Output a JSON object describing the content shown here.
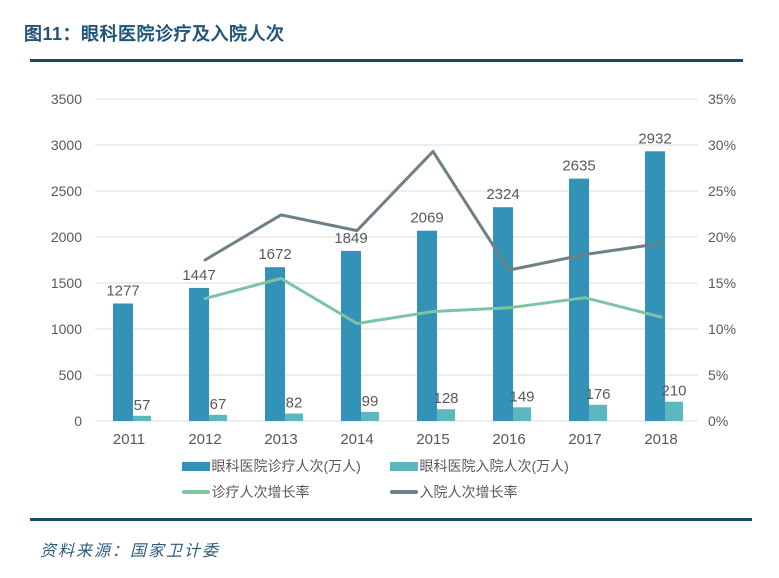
{
  "header": {
    "title": "图11：眼科医院诊疗及入院人次"
  },
  "footer": {
    "source": "资料来源：国家卫计委"
  },
  "theme": {
    "title_color": "#1f5578",
    "rule_color": "#1c4a63",
    "axis_text_color": "#595959",
    "grid_color": "#dcdcdc",
    "source_text_color": "#2e5c7c"
  },
  "chart_data": {
    "type": "bar+line",
    "title": "眼科医院诊疗及入院人次",
    "categories": [
      "2011",
      "2012",
      "2013",
      "2014",
      "2015",
      "2016",
      "2017",
      "2018"
    ],
    "series": [
      {
        "name": "眼科医院诊疗人次(万人)",
        "type": "bar",
        "axis": "left",
        "color": "#3292b8",
        "values": [
          1277,
          1447,
          1672,
          1849,
          2069,
          2324,
          2635,
          2932
        ]
      },
      {
        "name": "眼科医院入院人次(万人)",
        "type": "bar",
        "axis": "left",
        "color": "#5cb8c0",
        "values": [
          57,
          67,
          82,
          99,
          128,
          149,
          176,
          210
        ]
      },
      {
        "name": "诊疗人次增长率",
        "type": "line",
        "axis": "right",
        "color": "#7cc4a2",
        "values": [
          null,
          13.3,
          15.5,
          10.6,
          11.9,
          12.3,
          13.4,
          11.3
        ]
      },
      {
        "name": "入院人次增长率",
        "type": "line",
        "axis": "right",
        "color": "#6e8087",
        "values": [
          null,
          17.5,
          22.4,
          20.7,
          29.3,
          16.4,
          18.1,
          19.3
        ]
      }
    ],
    "left_axis": {
      "min": 0,
      "max": 3500,
      "step": 500,
      "tick_labels": [
        "0",
        "500",
        "1000",
        "1500",
        "2000",
        "2500",
        "3000",
        "3500"
      ]
    },
    "right_axis": {
      "min": 0,
      "max": 35,
      "step": 5,
      "tick_labels": [
        "0%",
        "5%",
        "10%",
        "15%",
        "20%",
        "25%",
        "30%",
        "35%"
      ],
      "unit": "%"
    },
    "grid": true,
    "legend_position": "bottom",
    "data_labels": true
  }
}
